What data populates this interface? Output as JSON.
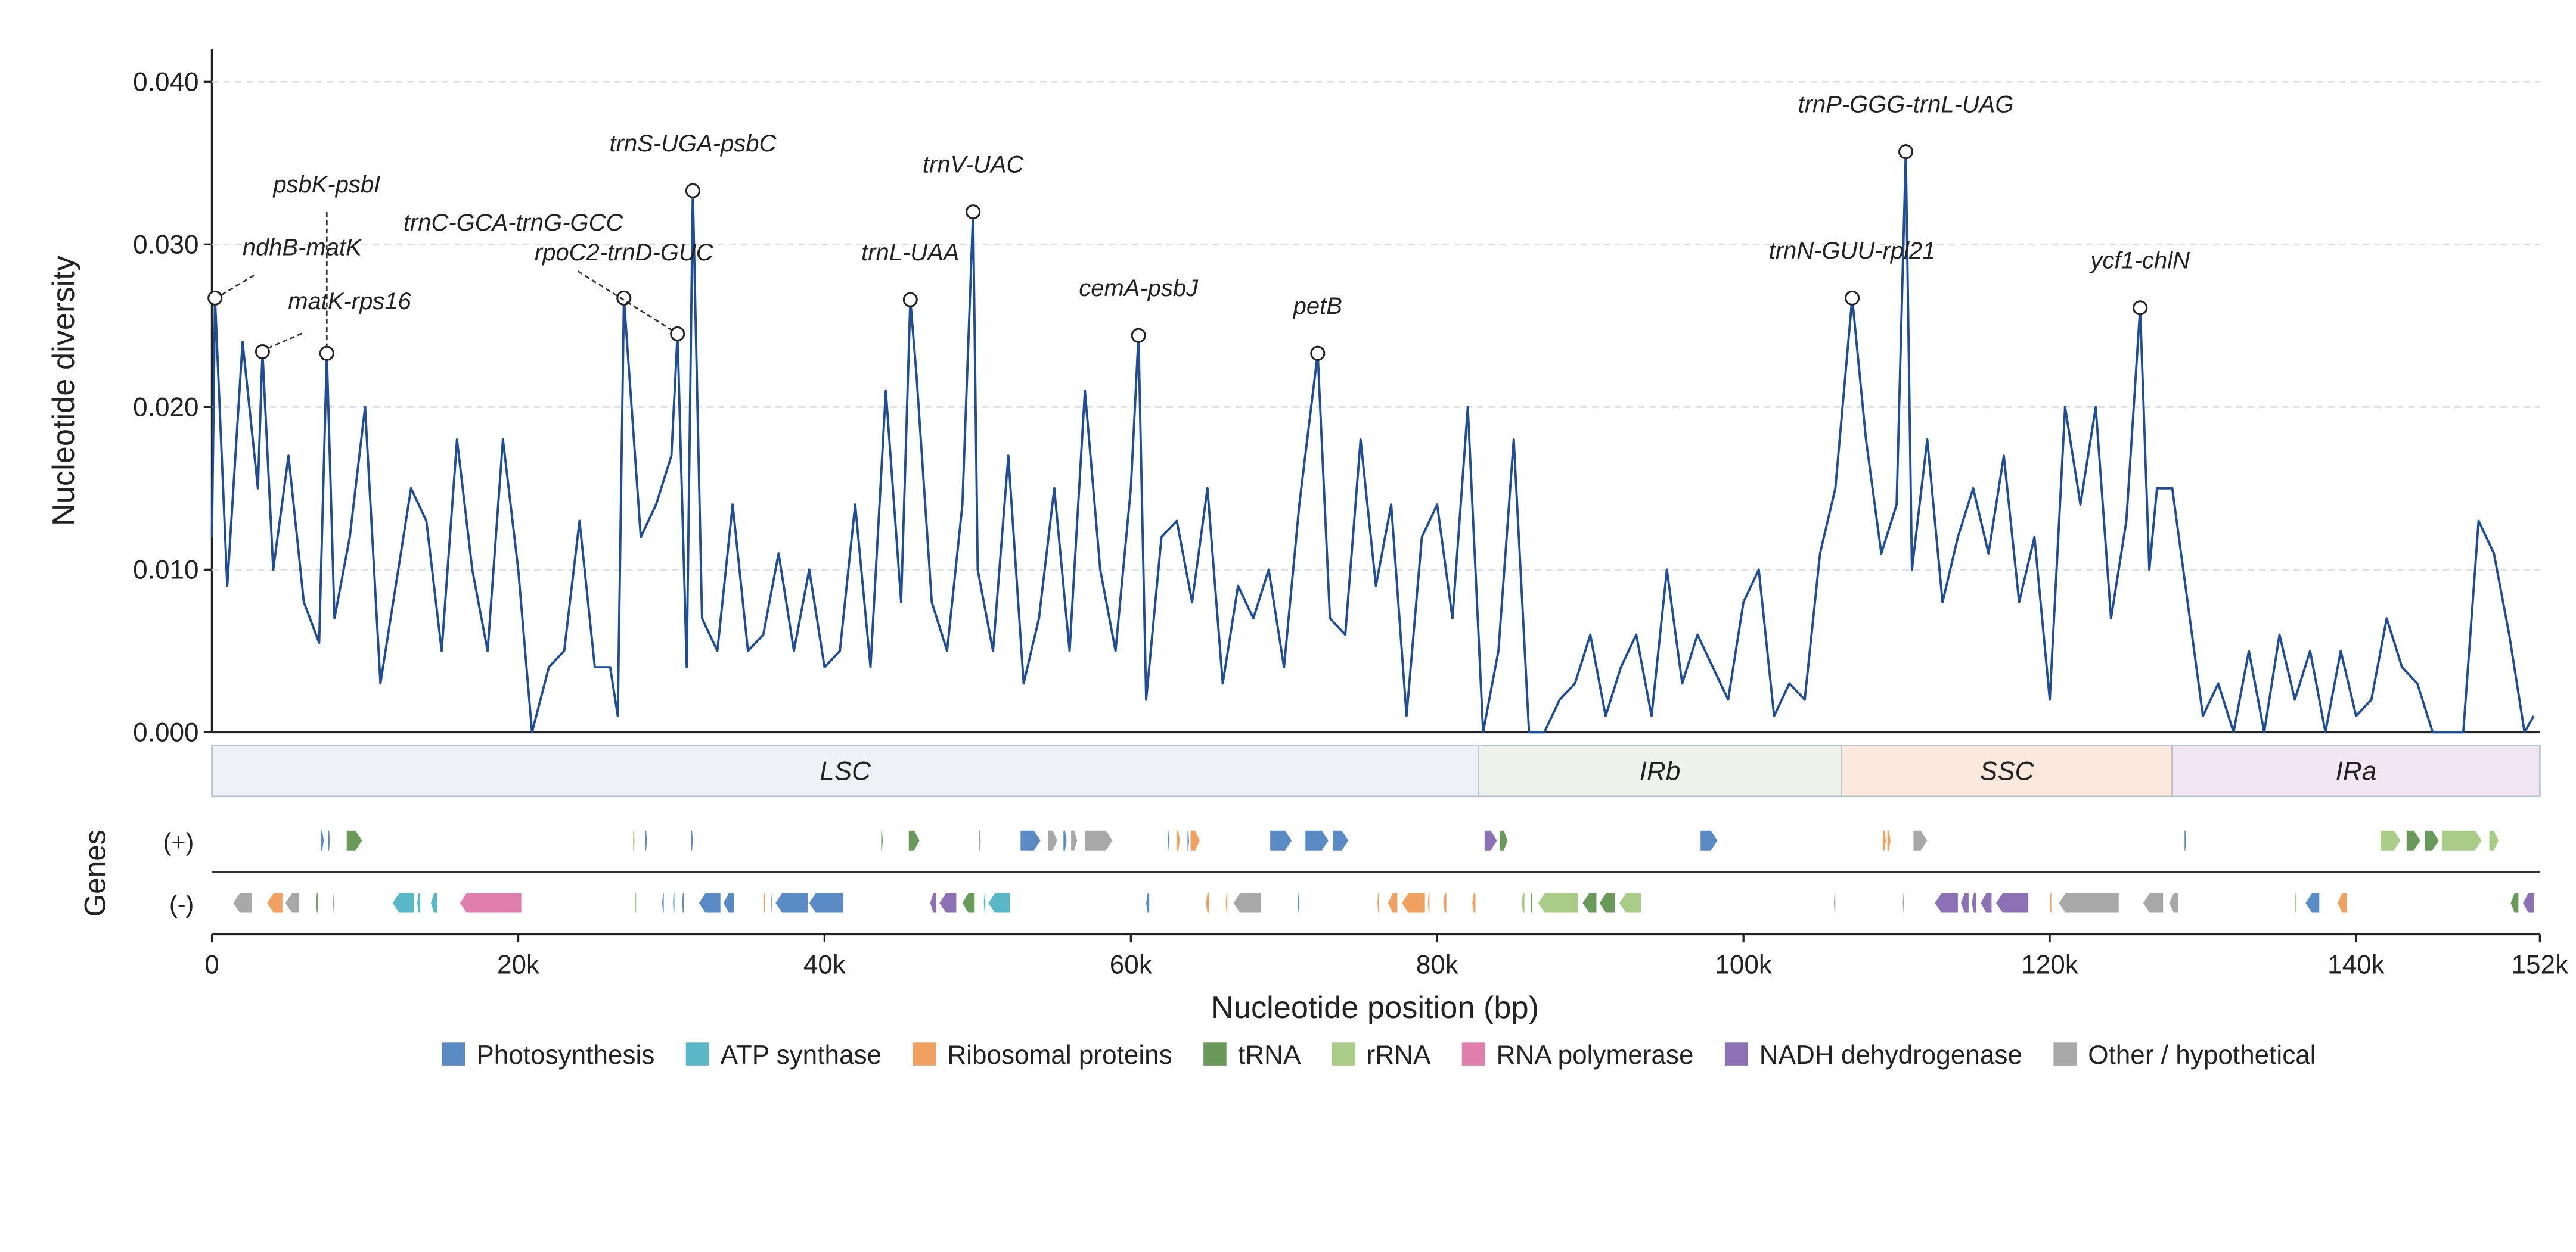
{
  "chart_data": {
    "type": "line",
    "ylabel": "Nucleotide diversity",
    "xlabel": "Nucleotide position (bp)",
    "track_label": "Genes",
    "strand_labels": [
      "(+)",
      "(-)"
    ],
    "xlim": [
      0,
      152000
    ],
    "ylim": [
      0,
      0.042
    ],
    "yticks": [
      {
        "value": 0,
        "label": "0.000"
      },
      {
        "value": 0.01,
        "label": "0.010"
      },
      {
        "value": 0.02,
        "label": "0.020"
      },
      {
        "value": 0.03,
        "label": "0.030"
      },
      {
        "value": 0.04,
        "label": "0.040"
      }
    ],
    "xticks": [
      0,
      {
        "value": 20000,
        "label": "20k"
      },
      {
        "value": 40000,
        "label": "40k"
      },
      {
        "value": 60000,
        "label": "60k"
      },
      {
        "value": 80000,
        "label": "80k"
      },
      {
        "value": 100000,
        "label": "100k"
      },
      {
        "value": 120000,
        "label": "120k"
      },
      {
        "value": 140000,
        "label": "140k"
      },
      {
        "value": 152000,
        "label": "152k"
      }
    ],
    "grid": true,
    "series": [
      {
        "color": "#1f4e96",
        "x": [
          0,
          200,
          1000,
          2000,
          3000,
          3300,
          4000,
          5000,
          6000,
          7000,
          7500,
          8000,
          9000,
          10000,
          11000,
          12000,
          13000,
          14000,
          15000,
          16000,
          17000,
          18000,
          19000,
          20000,
          20900,
          22000,
          23000,
          24000,
          25000,
          26000,
          26500,
          26900,
          28000,
          29000,
          30000,
          30400,
          31000,
          31400,
          32000,
          33000,
          34000,
          35000,
          36000,
          37000,
          38000,
          39000,
          40000,
          41000,
          42000,
          43000,
          44000,
          45000,
          45600,
          46000,
          47000,
          48000,
          49000,
          49700,
          50000,
          51000,
          52000,
          53000,
          54000,
          55000,
          56000,
          57000,
          58000,
          59000,
          60000,
          60500,
          61000,
          62000,
          63000,
          64000,
          65000,
          66000,
          67000,
          68000,
          69000,
          70000,
          71000,
          72200,
          73000,
          74000,
          75000,
          76000,
          77000,
          78000,
          79000,
          80000,
          81000,
          82000,
          83000,
          84000,
          85000,
          86000,
          87000,
          88000,
          89000,
          90000,
          91000,
          92000,
          93000,
          94000,
          95000,
          96000,
          97000,
          98000,
          99000,
          100000,
          101000,
          102000,
          103000,
          104000,
          105000,
          106000,
          107100,
          108000,
          109000,
          110000,
          110600,
          111000,
          112000,
          113000,
          114000,
          115000,
          116000,
          117000,
          118000,
          119000,
          120000,
          121000,
          122000,
          123000,
          124000,
          125000,
          125900,
          126500,
          127000,
          128000,
          129000,
          130000,
          131000,
          132000,
          133000,
          134000,
          135000,
          136000,
          137000,
          138000,
          139000,
          140000,
          141000,
          142000,
          143000,
          144000,
          145000,
          146000,
          147000,
          148000,
          149000,
          150000,
          151000,
          151600
        ],
        "values": [
          0.012,
          0.0267,
          0.009,
          0.024,
          0.015,
          0.0234,
          0.01,
          0.017,
          0.008,
          0.0055,
          0.0233,
          0.007,
          0.012,
          0.02,
          0.003,
          0.009,
          0.015,
          0.013,
          0.005,
          0.018,
          0.01,
          0.005,
          0.018,
          0.01,
          0.0,
          0.004,
          0.005,
          0.013,
          0.004,
          0.004,
          0.001,
          0.0267,
          0.012,
          0.014,
          0.017,
          0.0245,
          0.004,
          0.0333,
          0.007,
          0.005,
          0.014,
          0.005,
          0.006,
          0.011,
          0.005,
          0.01,
          0.004,
          0.005,
          0.014,
          0.004,
          0.021,
          0.008,
          0.0266,
          0.022,
          0.008,
          0.005,
          0.014,
          0.032,
          0.01,
          0.005,
          0.017,
          0.003,
          0.007,
          0.015,
          0.005,
          0.021,
          0.01,
          0.005,
          0.015,
          0.0244,
          0.002,
          0.012,
          0.013,
          0.008,
          0.015,
          0.003,
          0.009,
          0.007,
          0.01,
          0.004,
          0.014,
          0.0233,
          0.007,
          0.006,
          0.018,
          0.009,
          0.014,
          0.001,
          0.012,
          0.014,
          0.007,
          0.02,
          0.0,
          0.005,
          0.018,
          0.0,
          0.0,
          0.002,
          0.003,
          0.006,
          0.001,
          0.004,
          0.006,
          0.001,
          0.01,
          0.003,
          0.006,
          0.004,
          0.002,
          0.008,
          0.01,
          0.001,
          0.003,
          0.002,
          0.011,
          0.015,
          0.0267,
          0.018,
          0.011,
          0.014,
          0.0357,
          0.01,
          0.018,
          0.008,
          0.012,
          0.015,
          0.011,
          0.017,
          0.008,
          0.012,
          0.002,
          0.02,
          0.014,
          0.02,
          0.007,
          0.013,
          0.0261,
          0.01,
          0.015,
          0.015,
          0.008,
          0.001,
          0.003,
          0.0,
          0.005,
          0.0,
          0.006,
          0.002,
          0.005,
          0.0,
          0.005,
          0.001,
          0.002,
          0.007,
          0.004,
          0.003,
          0.0,
          0.0,
          0.0,
          0.013,
          0.011,
          0.006,
          0.0,
          0.001
        ]
      }
    ],
    "annotations": [
      {
        "text": "ndhB-matK",
        "x": 200,
        "y": 0.0267
      },
      {
        "text": "matK-rps16",
        "x": 3300,
        "y": 0.0234
      },
      {
        "text": "psbK-psbI",
        "x": 7500,
        "y": 0.0233
      },
      {
        "text": "rpoC2-trnD-GUC",
        "x": 26900,
        "y": 0.0267
      },
      {
        "text": "trnC-GCA-trnG-GCC",
        "x": 30400,
        "y": 0.0245
      },
      {
        "text": "trnS-UGA-psbC",
        "x": 31400,
        "y": 0.0333
      },
      {
        "text": "trnL-UAA",
        "x": 45600,
        "y": 0.0266
      },
      {
        "text": "trnV-UAC",
        "x": 49700,
        "y": 0.032
      },
      {
        "text": "cemA-psbJ",
        "x": 60500,
        "y": 0.0244
      },
      {
        "text": "petB",
        "x": 72200,
        "y": 0.0233
      },
      {
        "text": "trnN-GUU-rpl21",
        "x": 107100,
        "y": 0.0267
      },
      {
        "text": "trnP-GGG-trnL-UAG",
        "x": 110600,
        "y": 0.0357
      },
      {
        "text": "ycf1-chlN",
        "x": 125900,
        "y": 0.0261
      }
    ],
    "regions": [
      {
        "name": "LSC",
        "start": 0,
        "end": 82700,
        "color": "#eef2f6"
      },
      {
        "name": "IRb",
        "start": 82700,
        "end": 106400,
        "color": "#edf3ea"
      },
      {
        "name": "SSC",
        "start": 106400,
        "end": 128000,
        "color": "#fae9dc"
      },
      {
        "name": "IRa",
        "start": 128000,
        "end": 152000,
        "color": "#f1e6f1"
      }
    ],
    "categories": [
      {
        "name": "Photosynthesis",
        "color": "#5b8bc4"
      },
      {
        "name": "ATP synthase",
        "color": "#5ab8c6"
      },
      {
        "name": "Ribosomal proteins",
        "color": "#f0a060"
      },
      {
        "name": "tRNA",
        "color": "#6a9a5a"
      },
      {
        "name": "rRNA",
        "color": "#a9cc88"
      },
      {
        "name": "RNA polymerase",
        "color": "#e07fae"
      },
      {
        "name": "NADH dehydrogenase",
        "color": "#8c72b5"
      },
      {
        "name": "Other / hypothetical",
        "color": "#a8a8a8"
      }
    ],
    "genes_plus": [
      [
        7100,
        7300,
        0
      ],
      [
        7600,
        7700,
        0
      ],
      [
        8800,
        9800,
        3
      ],
      [
        27500,
        27600,
        4
      ],
      [
        28300,
        28400,
        0
      ],
      [
        31300,
        31400,
        0
      ],
      [
        43700,
        43800,
        3
      ],
      [
        45500,
        46200,
        3
      ],
      [
        50100,
        50200,
        7
      ],
      [
        52800,
        54100,
        0
      ],
      [
        54600,
        55200,
        7
      ],
      [
        55600,
        55800,
        0
      ],
      [
        56100,
        56500,
        7
      ],
      [
        57000,
        58800,
        7
      ],
      [
        62400,
        62500,
        0
      ],
      [
        63000,
        63200,
        2
      ],
      [
        63700,
        63800,
        0
      ],
      [
        63900,
        64500,
        2
      ],
      [
        69100,
        70500,
        0
      ],
      [
        71400,
        72900,
        0
      ],
      [
        73200,
        74200,
        0
      ],
      [
        83100,
        83900,
        6
      ],
      [
        84100,
        84600,
        3
      ],
      [
        97200,
        98300,
        0
      ],
      [
        109100,
        109300,
        2
      ],
      [
        109400,
        109600,
        2
      ],
      [
        111100,
        112000,
        7
      ],
      [
        128800,
        128900,
        0
      ],
      [
        141600,
        142900,
        4
      ],
      [
        143300,
        144200,
        3
      ],
      [
        144500,
        145400,
        3
      ],
      [
        145600,
        148200,
        4
      ],
      [
        148700,
        149300,
        4
      ]
    ],
    "genes_minus": [
      [
        1400,
        2600,
        7
      ],
      [
        3600,
        4600,
        2
      ],
      [
        4800,
        5700,
        7
      ],
      [
        6800,
        6900,
        3
      ],
      [
        7900,
        8000,
        7
      ],
      [
        11800,
        13200,
        1
      ],
      [
        13400,
        13600,
        1
      ],
      [
        14300,
        14700,
        1
      ],
      [
        16200,
        20200,
        5
      ],
      [
        27600,
        27700,
        4
      ],
      [
        29400,
        29500,
        0
      ],
      [
        30100,
        30200,
        1
      ],
      [
        30700,
        30800,
        0
      ],
      [
        31800,
        33200,
        0
      ],
      [
        33400,
        34100,
        0
      ],
      [
        36000,
        36100,
        2
      ],
      [
        36500,
        36600,
        7
      ],
      [
        36800,
        38900,
        0
      ],
      [
        39000,
        41200,
        0
      ],
      [
        46900,
        47300,
        6
      ],
      [
        47500,
        48600,
        6
      ],
      [
        49000,
        49800,
        3
      ],
      [
        50400,
        50500,
        1
      ],
      [
        50700,
        52100,
        1
      ],
      [
        61000,
        61200,
        0
      ],
      [
        64900,
        65100,
        2
      ],
      [
        66200,
        66300,
        2
      ],
      [
        66700,
        68500,
        7
      ],
      [
        70900,
        71000,
        0
      ],
      [
        76100,
        76200,
        2
      ],
      [
        76800,
        77400,
        2
      ],
      [
        77700,
        79200,
        2
      ],
      [
        79400,
        79500,
        2
      ],
      [
        80400,
        80600,
        2
      ],
      [
        82300,
        82500,
        2
      ],
      [
        85500,
        85700,
        4
      ],
      [
        86100,
        86200,
        3
      ],
      [
        86600,
        89200,
        4
      ],
      [
        89500,
        90400,
        3
      ],
      [
        90600,
        91600,
        3
      ],
      [
        91900,
        93300,
        4
      ],
      [
        105900,
        106000,
        7
      ],
      [
        110400,
        110500,
        7
      ],
      [
        112500,
        114000,
        6
      ],
      [
        114200,
        114700,
        6
      ],
      [
        114900,
        115200,
        6
      ],
      [
        115500,
        116200,
        6
      ],
      [
        116500,
        118600,
        6
      ],
      [
        120000,
        120100,
        2
      ],
      [
        120600,
        124500,
        7
      ],
      [
        126100,
        127400,
        7
      ],
      [
        127800,
        128400,
        7
      ],
      [
        136000,
        136100,
        4
      ],
      [
        136700,
        137600,
        0
      ],
      [
        138800,
        139400,
        2
      ],
      [
        150100,
        150600,
        3
      ],
      [
        150900,
        151600,
        6
      ]
    ]
  }
}
